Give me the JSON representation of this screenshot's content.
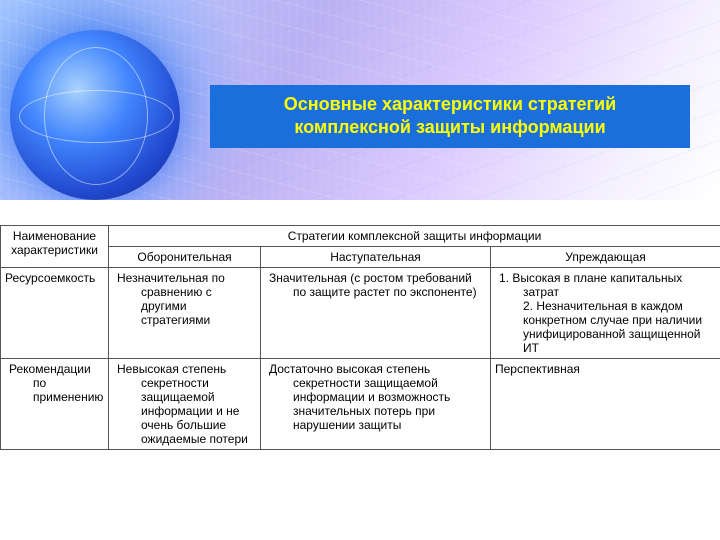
{
  "title": "Основные характеристики стратегий комплексной защиты информации",
  "colors": {
    "title_bg": "#1a6fdc",
    "title_text": "#ffff00",
    "border": "#555555",
    "text": "#000000",
    "page_bg": "#ffffff"
  },
  "table": {
    "header": {
      "name_col": "Наименование характеристики",
      "group_col": "Стратегии комплексной защиты информации",
      "sub1": "Оборонительная",
      "sub2": "Наступательная",
      "sub3": "Упреждающая"
    },
    "rows": [
      {
        "name": "Ресурсоемкость",
        "c1": "Незначительная по сравнению с другими стратегиями",
        "c2": "Значительная (с ростом требований по защите растет по экспоненте)",
        "c3": "1. Высокая в плане капитальных затрат\n2. Незначительная в каждом конкретном случае при наличии унифицированной защищенной ИТ"
      },
      {
        "name": "Рекомендации по применению",
        "c1": "Невысокая степень секретности защищаемой информации и не очень большие ожидаемые потери",
        "c2": "Достаточно высокая степень секретности защищаемой информации и возможность значительных потерь при нарушении защиты",
        "c3": "Перспективная"
      }
    ]
  }
}
